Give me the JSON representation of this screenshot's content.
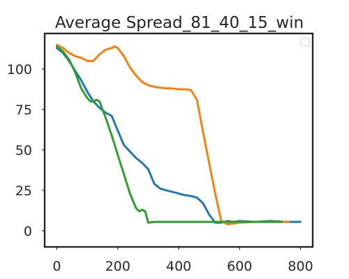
{
  "chart_data": {
    "type": "line",
    "title": "Average Spread_81_40_15_win",
    "xlabel": "",
    "ylabel": "",
    "xlim": [
      -40,
      840
    ],
    "ylim": [
      -10,
      122
    ],
    "xticks": [
      0,
      200,
      400,
      600,
      800
    ],
    "yticks": [
      0,
      25,
      50,
      75,
      100
    ],
    "grid": false,
    "legend": {
      "placement": "top-right",
      "entries": []
    },
    "series": [
      {
        "color": "#1f77b4",
        "x": [
          0,
          20,
          40,
          60,
          80,
          100,
          120,
          140,
          160,
          180,
          200,
          220,
          240,
          260,
          280,
          300,
          320,
          340,
          360,
          380,
          400,
          420,
          440,
          460,
          480,
          500,
          520,
          540,
          560,
          580,
          600,
          650,
          700,
          750,
          800
        ],
        "y": [
          113,
          110,
          105,
          99,
          93,
          86,
          80,
          76,
          73,
          71,
          62,
          53,
          49,
          45,
          42,
          38,
          29,
          26,
          25,
          24,
          23,
          22,
          21.5,
          20.5,
          17,
          10,
          5,
          5,
          6,
          5.5,
          6,
          5.5,
          6,
          5.5,
          5.5
        ]
      },
      {
        "color": "#ff7f0e",
        "x": [
          0,
          20,
          40,
          60,
          80,
          100,
          120,
          140,
          160,
          180,
          190,
          200,
          220,
          240,
          260,
          280,
          300,
          320,
          340,
          360,
          380,
          400,
          420,
          440,
          460,
          480,
          500,
          520,
          540,
          560,
          580,
          600,
          650,
          700,
          760
        ],
        "y": [
          115,
          113,
          110,
          108,
          107,
          105,
          105,
          109,
          112,
          113,
          114,
          113,
          108,
          101,
          96,
          92,
          90,
          89,
          88.5,
          88,
          88,
          87.5,
          87.5,
          87,
          81,
          61,
          42,
          23,
          6,
          4,
          4.5,
          5,
          5.5,
          5.5,
          5.5
        ]
      },
      {
        "color": "#2ca02c",
        "x": [
          0,
          20,
          40,
          60,
          80,
          100,
          110,
          120,
          130,
          140,
          150,
          160,
          180,
          200,
          220,
          240,
          260,
          270,
          280,
          290,
          300,
          320,
          350,
          400,
          450,
          500,
          560,
          620,
          680,
          740
        ],
        "y": [
          114,
          111,
          106,
          98,
          88,
          82,
          80,
          80,
          81,
          80,
          75,
          70,
          59,
          47,
          35,
          23,
          14,
          12,
          13,
          12,
          5,
          5.5,
          5.5,
          5.5,
          5.5,
          5.5,
          5.5,
          5.5,
          5.5,
          5.5
        ]
      }
    ]
  }
}
